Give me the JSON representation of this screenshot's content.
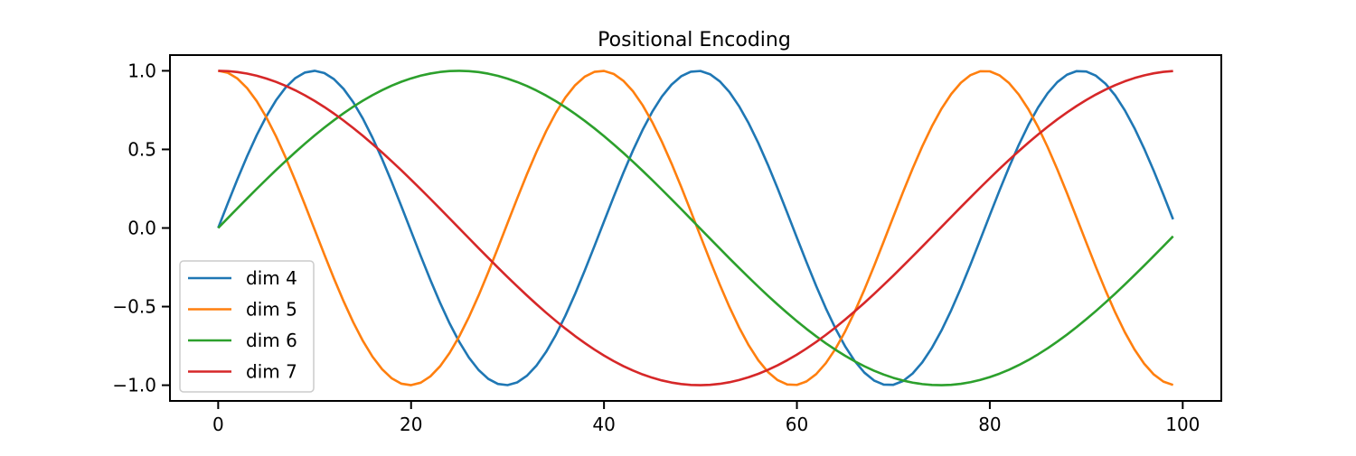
{
  "chart_data": {
    "type": "line",
    "title": "Positional Encoding",
    "xlabel": "",
    "ylabel": "",
    "xlim": [
      -5,
      104
    ],
    "ylim": [
      -1.1,
      1.1
    ],
    "x_ticks": [
      0,
      20,
      40,
      60,
      80,
      100
    ],
    "x_tick_labels": [
      "0",
      "20",
      "40",
      "60",
      "80",
      "100"
    ],
    "y_ticks": [
      1.0,
      0.5,
      0.0,
      -0.5,
      -1.0
    ],
    "y_tick_labels": [
      "1.0",
      "0.5",
      "0.0",
      "−0.5",
      "−1.0"
    ],
    "grid": false,
    "legend_position": "lower-left",
    "x_range": [
      0,
      99
    ],
    "series": [
      {
        "name": "dim 4",
        "color": "#1f77b4",
        "function": "sin",
        "period": 39.74
      },
      {
        "name": "dim 5",
        "color": "#ff7f0e",
        "function": "cos",
        "period": 39.74
      },
      {
        "name": "dim 6",
        "color": "#2ca02c",
        "function": "sin",
        "period": 99.84
      },
      {
        "name": "dim 7",
        "color": "#d62728",
        "function": "cos",
        "period": 99.84
      }
    ]
  }
}
